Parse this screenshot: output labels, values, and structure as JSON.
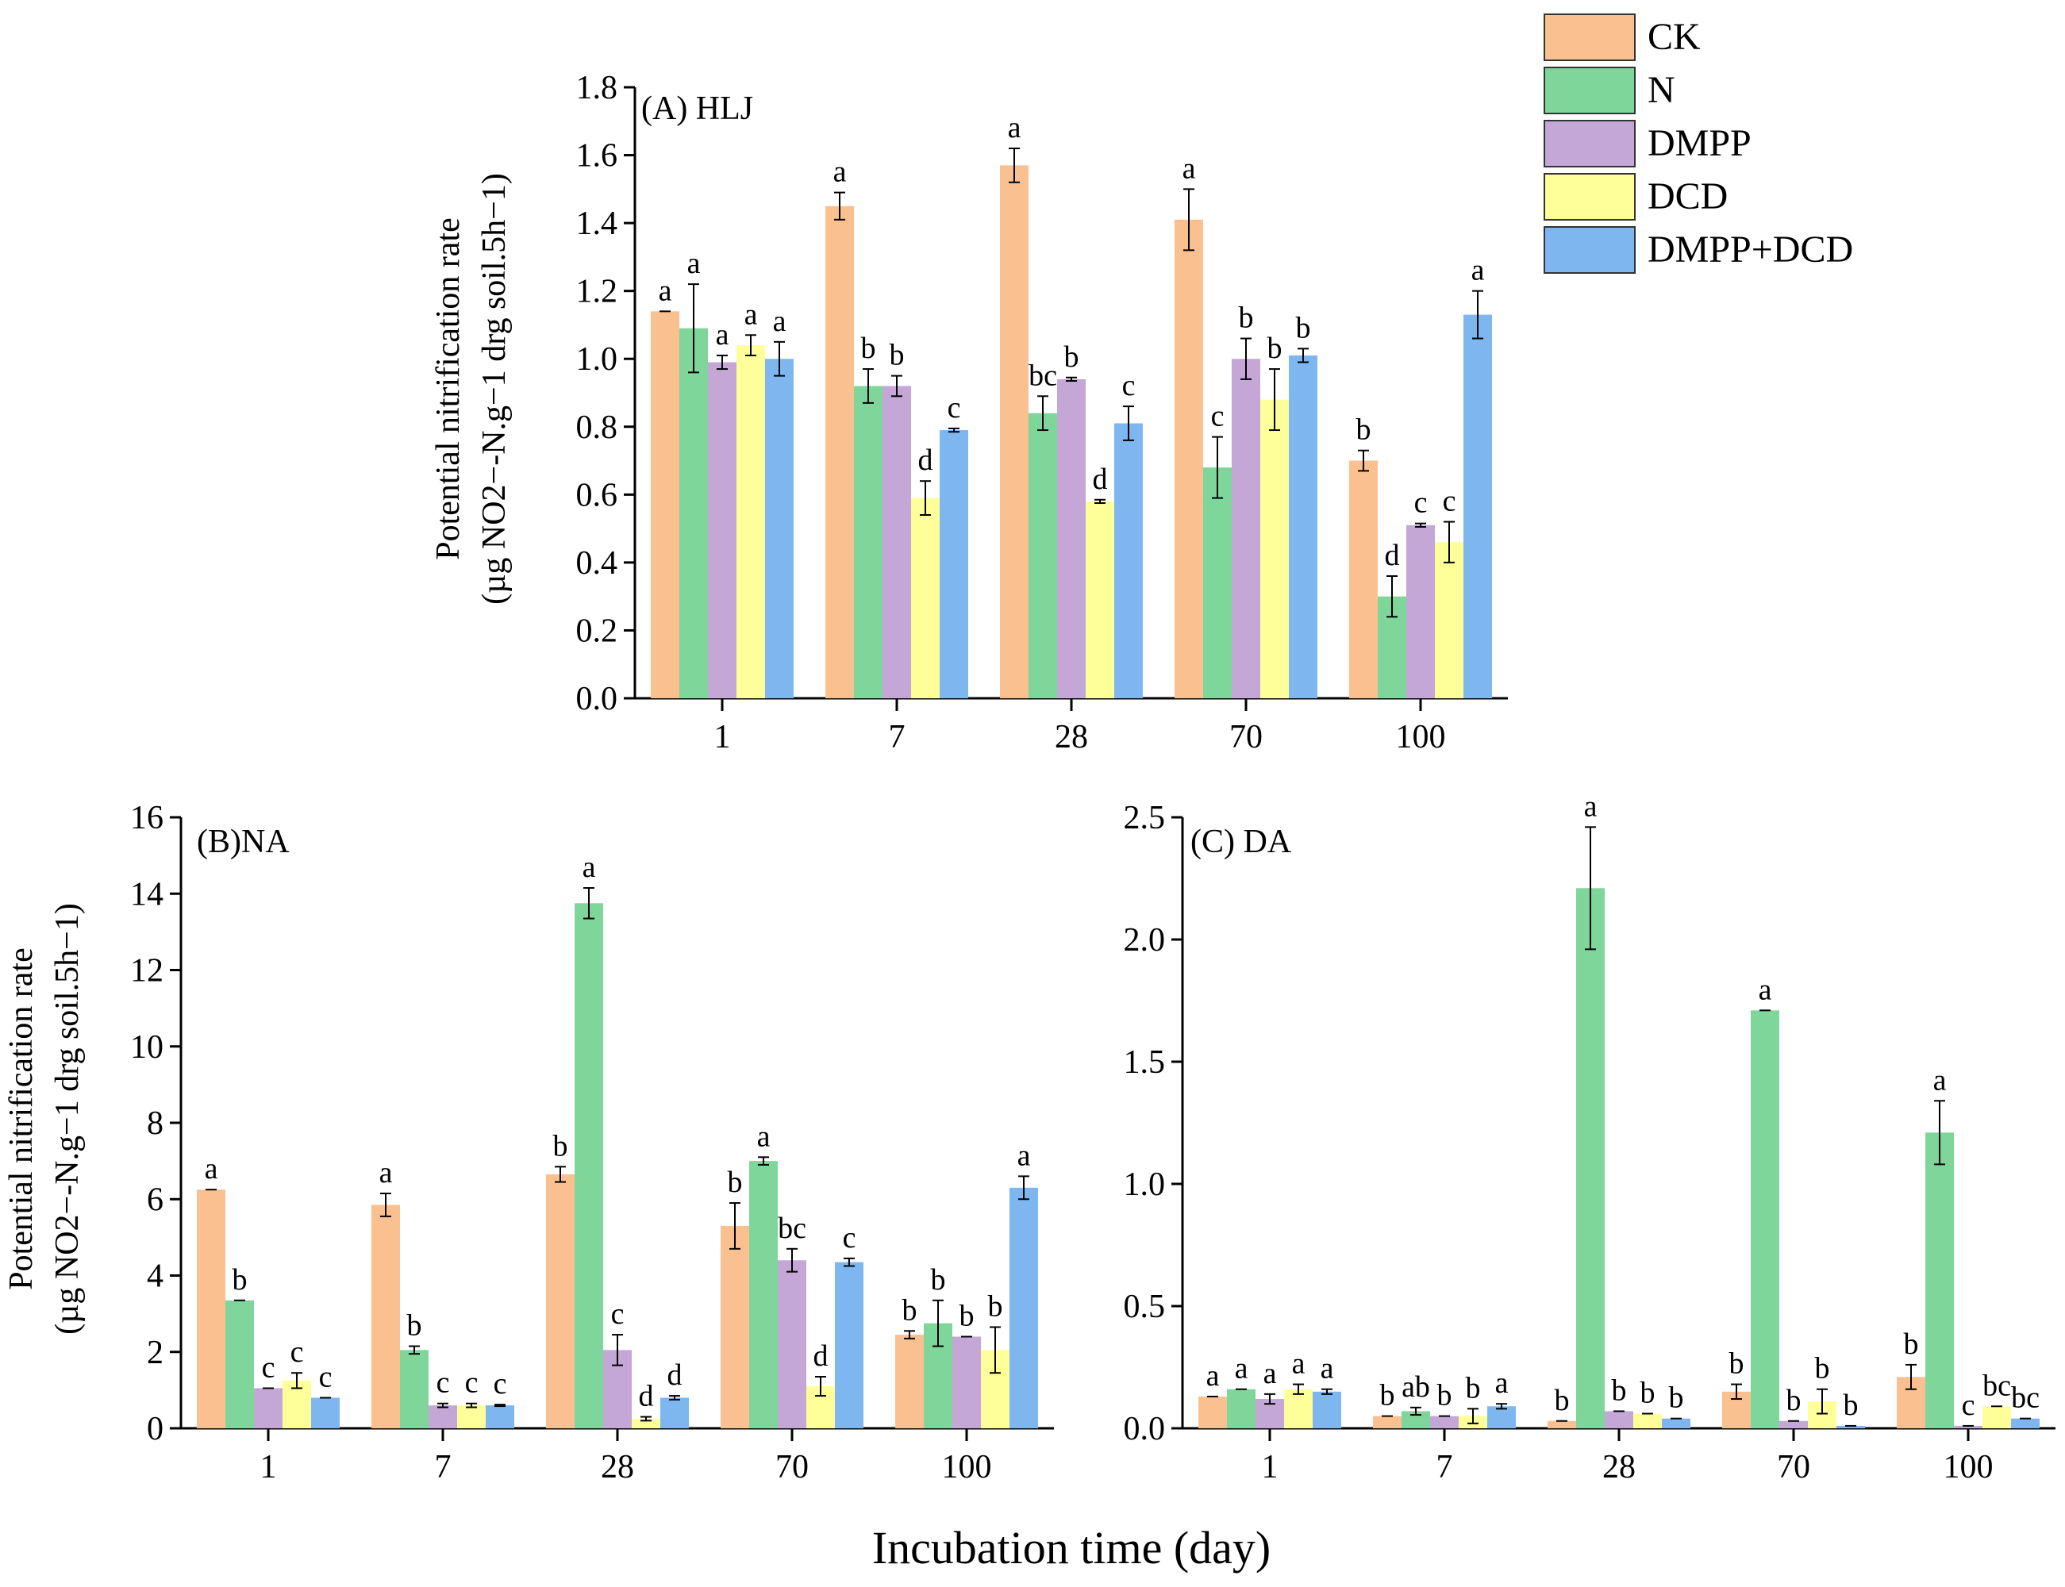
{
  "figure": {
    "xlabel": "Incubation time (day)",
    "ylabel_line1": "Potential nitrification rate",
    "ylabel_line2": "(µg NO2−-N.g−1 drg soil.5h−1)"
  },
  "legend": [
    {
      "name": "CK",
      "color": "#FAC090"
    },
    {
      "name": "N",
      "color": "#7ED69A"
    },
    {
      "name": "DMPP",
      "color": "#C4A7D6"
    },
    {
      "name": "DCD",
      "color": "#FFFF99"
    },
    {
      "name": "DMPP+DCD",
      "color": "#7EB6F0"
    }
  ],
  "chart_data": [
    {
      "type": "bar",
      "title": "(A) HLJ",
      "categories": [
        "1",
        "7",
        "28",
        "70",
        "100"
      ],
      "ylim": [
        0,
        1.8
      ],
      "yticks": [
        "0.0",
        "0.2",
        "0.4",
        "0.6",
        "0.8",
        "1.0",
        "1.2",
        "1.4",
        "1.6",
        "1.8"
      ],
      "ytick_values": [
        0,
        0.2,
        0.4,
        0.6,
        0.8,
        1.0,
        1.2,
        1.4,
        1.6,
        1.8
      ],
      "series": [
        {
          "name": "CK",
          "values": [
            1.14,
            1.45,
            1.57,
            1.41,
            0.7
          ],
          "errors": [
            0,
            0.04,
            0.05,
            0.09,
            0.03
          ],
          "letters": [
            "a",
            "a",
            "a",
            "a",
            "b"
          ]
        },
        {
          "name": "N",
          "values": [
            1.09,
            0.92,
            0.84,
            0.68,
            0.3
          ],
          "errors": [
            0.13,
            0.05,
            0.05,
            0.09,
            0.06
          ],
          "letters": [
            "a",
            "b",
            "bc",
            "c",
            "d"
          ]
        },
        {
          "name": "DMPP",
          "values": [
            0.99,
            0.92,
            0.94,
            1.0,
            0.51
          ],
          "errors": [
            0.02,
            0.03,
            0.005,
            0.06,
            0.005
          ],
          "letters": [
            "a",
            "b",
            "b",
            "b",
            "c"
          ]
        },
        {
          "name": "DCD",
          "values": [
            1.04,
            0.59,
            0.58,
            0.88,
            0.46
          ],
          "errors": [
            0.03,
            0.05,
            0.005,
            0.09,
            0.06
          ],
          "letters": [
            "a",
            "d",
            "d",
            "b",
            "c"
          ]
        },
        {
          "name": "DMPP+DCD",
          "values": [
            1.0,
            0.79,
            0.81,
            1.01,
            1.13
          ],
          "errors": [
            0.05,
            0.005,
            0.05,
            0.02,
            0.07
          ],
          "letters": [
            "a",
            "c",
            "c",
            "b",
            "a"
          ]
        }
      ]
    },
    {
      "type": "bar",
      "title": "(B)NA",
      "categories": [
        "1",
        "7",
        "28",
        "70",
        "100"
      ],
      "ylim": [
        0,
        16
      ],
      "yticks": [
        "0",
        "2",
        "4",
        "6",
        "8",
        "10",
        "12",
        "14",
        "16"
      ],
      "ytick_values": [
        0,
        2,
        4,
        6,
        8,
        10,
        12,
        14,
        16
      ],
      "series": [
        {
          "name": "CK",
          "values": [
            6.25,
            5.85,
            6.65,
            5.3,
            2.45
          ],
          "errors": [
            0,
            0.3,
            0.2,
            0.6,
            0.1
          ],
          "letters": [
            "a",
            "a",
            "b",
            "b",
            "b"
          ]
        },
        {
          "name": "N",
          "values": [
            3.35,
            2.05,
            13.75,
            7.0,
            2.75
          ],
          "errors": [
            0,
            0.1,
            0.4,
            0.1,
            0.6
          ],
          "letters": [
            "b",
            "b",
            "a",
            "a",
            "b"
          ]
        },
        {
          "name": "DMPP",
          "values": [
            1.05,
            0.6,
            2.05,
            4.4,
            2.4
          ],
          "errors": [
            0,
            0.05,
            0.4,
            0.3,
            0
          ],
          "letters": [
            "c",
            "c",
            "c",
            "bc",
            "b"
          ]
        },
        {
          "name": "DCD",
          "values": [
            1.25,
            0.6,
            0.25,
            1.1,
            2.05
          ],
          "errors": [
            0.2,
            0.05,
            0.05,
            0.25,
            0.6
          ],
          "letters": [
            "c",
            "c",
            "d",
            "d",
            "b"
          ]
        },
        {
          "name": "DMPP+DCD",
          "values": [
            0.8,
            0.6,
            0.8,
            4.35,
            6.3
          ],
          "errors": [
            0,
            0.02,
            0.05,
            0.1,
            0.3
          ],
          "letters": [
            "c",
            "c",
            "d",
            "c",
            "a"
          ]
        }
      ]
    },
    {
      "type": "bar",
      "title": "(C) DA",
      "categories": [
        "1",
        "7",
        "28",
        "70",
        "100"
      ],
      "ylim": [
        0,
        2.5
      ],
      "yticks": [
        "0.0",
        "0.5",
        "1.0",
        "1.5",
        "2.0",
        "2.5"
      ],
      "ytick_values": [
        0,
        0.5,
        1.0,
        1.5,
        2.0,
        2.5
      ],
      "series": [
        {
          "name": "CK",
          "values": [
            0.13,
            0.05,
            0.03,
            0.15,
            0.21
          ],
          "errors": [
            0,
            0,
            0,
            0.03,
            0.05
          ],
          "letters": [
            "a",
            "b",
            "b",
            "b",
            "b"
          ]
        },
        {
          "name": "N",
          "values": [
            0.16,
            0.07,
            2.21,
            1.71,
            1.21
          ],
          "errors": [
            0,
            0.015,
            0.25,
            0,
            0.13
          ],
          "letters": [
            "a",
            "ab",
            "a",
            "a",
            "a"
          ]
        },
        {
          "name": "DMPP",
          "values": [
            0.12,
            0.05,
            0.07,
            0.03,
            0.01
          ],
          "errors": [
            0.02,
            0,
            0,
            0,
            0
          ],
          "letters": [
            "a",
            "b",
            "b",
            "b",
            "c"
          ]
        },
        {
          "name": "DCD",
          "values": [
            0.16,
            0.05,
            0.06,
            0.11,
            0.09
          ],
          "errors": [
            0.02,
            0.03,
            0,
            0.05,
            0
          ],
          "letters": [
            "a",
            "b",
            "b",
            "b",
            "bc"
          ]
        },
        {
          "name": "DMPP+DCD",
          "values": [
            0.15,
            0.09,
            0.04,
            0.01,
            0.04
          ],
          "errors": [
            0.01,
            0.01,
            0,
            0,
            0
          ],
          "letters": [
            "a",
            "a",
            "b",
            "b",
            "bc"
          ]
        }
      ]
    }
  ]
}
